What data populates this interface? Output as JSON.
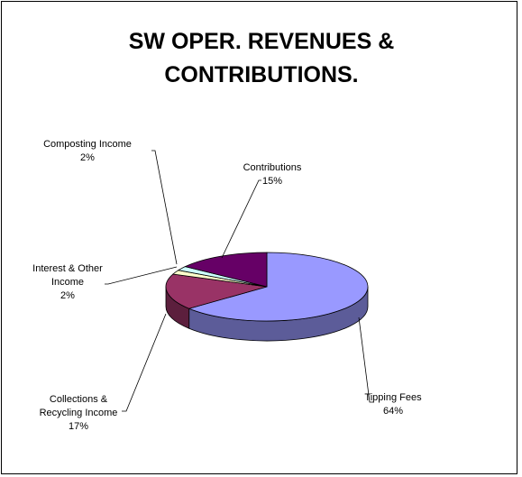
{
  "chart_data": {
    "type": "pie3d",
    "title": "SW OPER. REVENUES & CONTRIBUTIONS.",
    "categories": [
      "Tipping Fees",
      "Collections & Recycling Income",
      "Interest & Other Income",
      "Composting Income",
      "Contributions"
    ],
    "values": [
      64,
      17,
      2,
      2,
      15
    ],
    "value_labels": [
      "64%",
      "17%",
      "2%",
      "2%",
      "15%"
    ],
    "colors": [
      "#9999ff",
      "#993366",
      "#ffffcc",
      "#ccffff",
      "#660066"
    ]
  }
}
